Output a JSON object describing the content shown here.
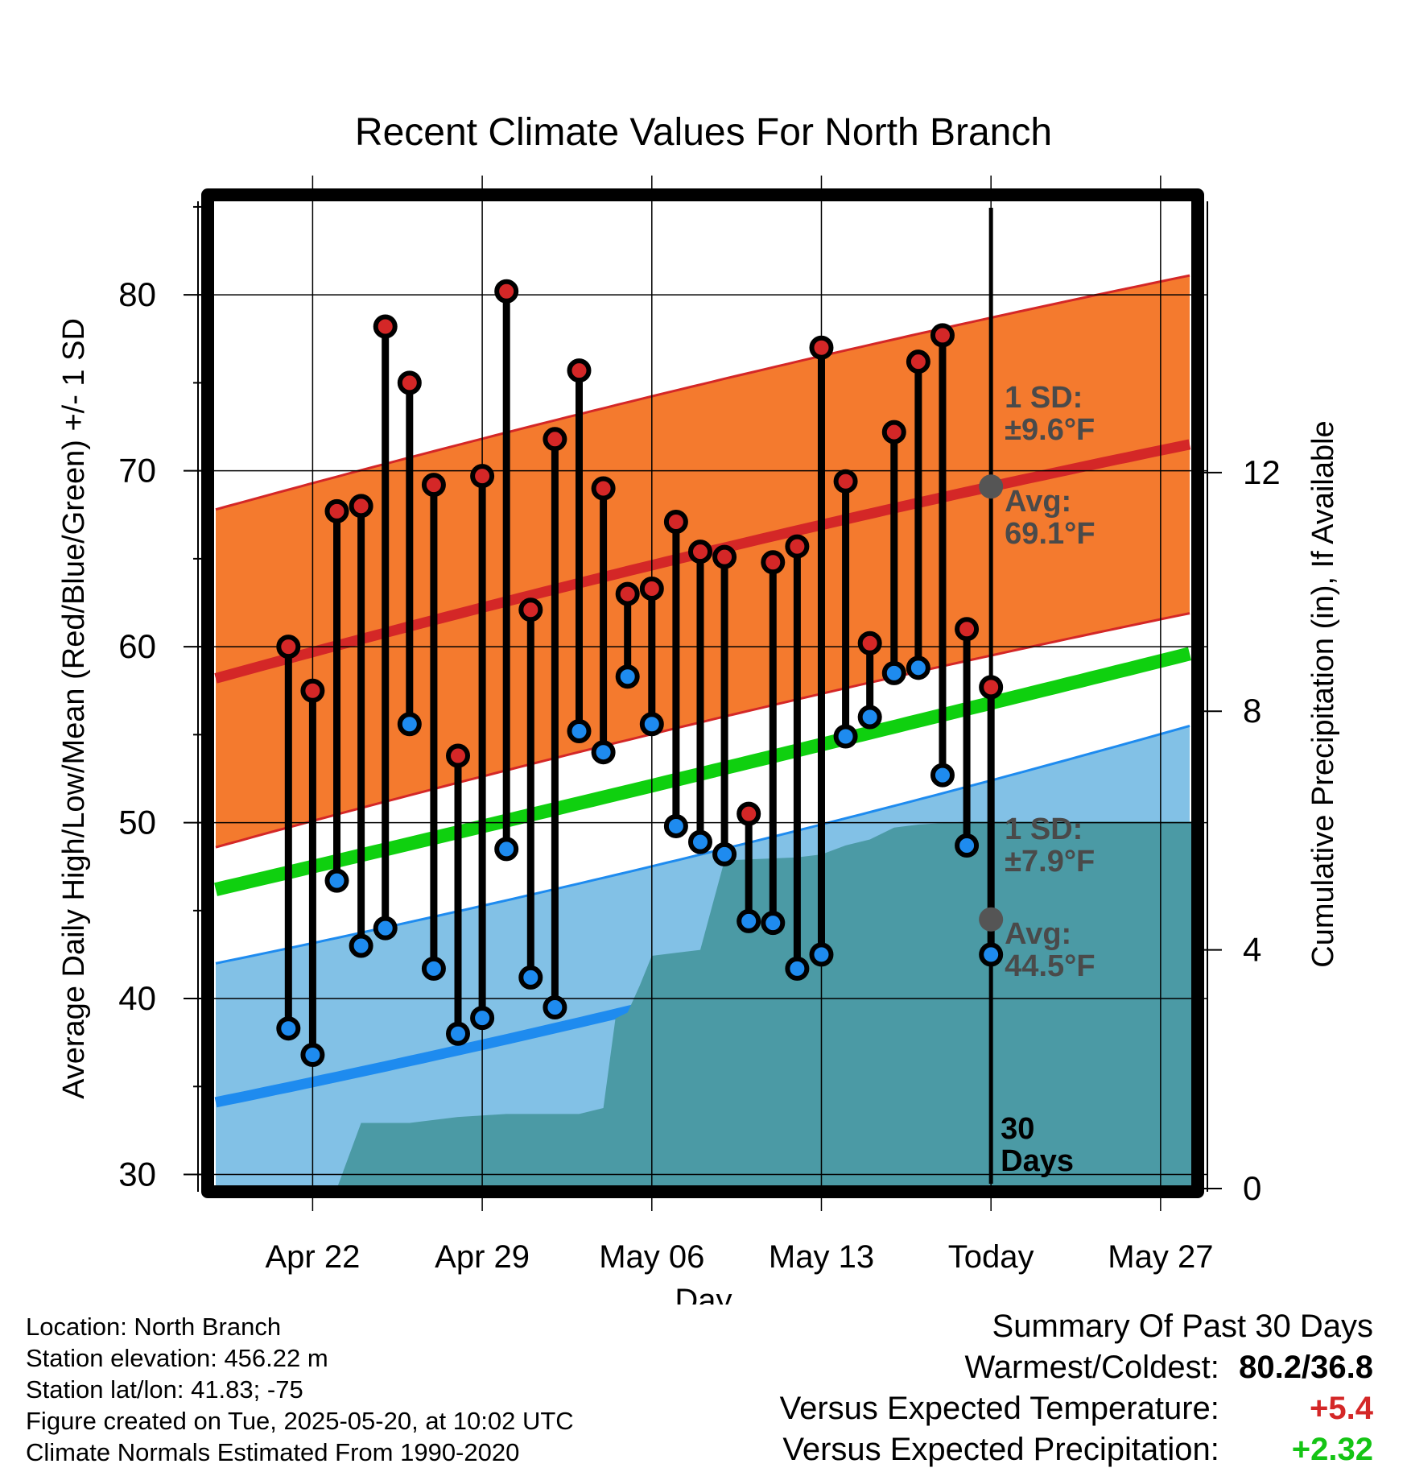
{
  "chart_data": {
    "type": "line",
    "title": "Recent Climate Values For North Branch",
    "xlabel": "Day",
    "ylabel": "Average Daily High/Low/Mean (Red/Blue/Green) +/- 1 SD",
    "y2label": "Cumulative Precipitation (in), If Available",
    "ylim": [
      29.2,
      85.5
    ],
    "y2lim": [
      0,
      16.6
    ],
    "yticks": [
      30,
      40,
      50,
      60,
      70,
      80
    ],
    "y2ticks": [
      0,
      4,
      8,
      12
    ],
    "x_day_range": [
      -2.2,
      38.4
    ],
    "xticks": [
      {
        "day": 2,
        "label": "Apr 22"
      },
      {
        "day": 9,
        "label": "Apr 29"
      },
      {
        "day": 16,
        "label": "May 06"
      },
      {
        "day": 23,
        "label": "May 13"
      },
      {
        "day": 30,
        "label": "Today"
      },
      {
        "day": 37,
        "label": "May 27"
      }
    ],
    "today_day": 30,
    "today_label_line1": "30",
    "today_label_line2": "Days",
    "days": [
      1,
      2,
      3,
      4,
      5,
      6,
      7,
      8,
      9,
      10,
      11,
      12,
      13,
      14,
      15,
      16,
      17,
      18,
      19,
      20,
      21,
      22,
      23,
      24,
      25,
      26,
      27,
      28,
      29
    ],
    "highs": [
      60.0,
      57.5,
      67.7,
      68.0,
      78.2,
      75.0,
      69.2,
      53.8,
      69.7,
      80.2,
      62.1,
      71.8,
      75.7,
      69.0,
      63.0,
      63.3,
      67.1,
      65.4,
      65.1,
      50.5,
      64.8,
      65.7,
      77.0,
      69.4,
      60.2,
      72.2,
      76.2,
      77.7,
      61.0
    ],
    "lows": [
      38.3,
      36.8,
      46.7,
      43.0,
      44.0,
      55.6,
      41.7,
      38.0,
      38.9,
      48.5,
      41.2,
      39.5,
      55.2,
      54.0,
      58.3,
      55.6,
      49.8,
      48.9,
      48.2,
      44.4,
      44.3,
      41.7,
      42.5,
      54.9,
      56.0,
      58.5,
      58.8,
      52.7,
      48.7
    ],
    "extra_high": {
      "day": 30,
      "value": 57.7
    },
    "extra_low": {
      "day": 30,
      "value": 42.5
    },
    "normals": {
      "high_avg": [
        [
          -2,
          58.2
        ],
        [
          30,
          69.1
        ],
        [
          38.2,
          71.5
        ]
      ],
      "high_sd": 9.6,
      "low_avg": [
        [
          -2,
          34.1
        ],
        [
          30,
          44.5
        ],
        [
          38.2,
          47.6
        ]
      ],
      "low_sd": 7.9,
      "mean_avg": [
        [
          -2,
          46.2
        ],
        [
          30,
          56.8
        ],
        [
          38.2,
          59.6
        ]
      ]
    },
    "precip_cumulative": [
      [
        -2.2,
        0
      ],
      [
        3.0,
        0
      ],
      [
        4.0,
        1.1
      ],
      [
        6.0,
        1.1
      ],
      [
        8.0,
        1.2
      ],
      [
        10.0,
        1.25
      ],
      [
        13.0,
        1.25
      ],
      [
        14.0,
        1.35
      ],
      [
        14.5,
        2.85
      ],
      [
        15.0,
        2.95
      ],
      [
        15.5,
        3.4
      ],
      [
        16.0,
        3.9
      ],
      [
        17.0,
        3.95
      ],
      [
        18.0,
        4.0
      ],
      [
        19.0,
        5.5
      ],
      [
        22.0,
        5.55
      ],
      [
        23.0,
        5.6
      ],
      [
        24.0,
        5.75
      ],
      [
        25.0,
        5.85
      ],
      [
        26.0,
        6.05
      ],
      [
        27.0,
        6.1
      ],
      [
        29.0,
        6.15
      ],
      [
        38.4,
        6.15
      ]
    ],
    "annotations": {
      "high_sd_line1": "1 SD:",
      "high_sd_line2": "±9.6°F",
      "high_avg_line1": "Avg:",
      "high_avg_line2": "69.1°F",
      "low_sd_line1": "1 SD:",
      "low_sd_line2": "±7.9°F",
      "low_avg_line1": "Avg:",
      "low_avg_line2": "44.5°F"
    },
    "colors": {
      "high_band": "#f47a2e",
      "high_line": "#d42727",
      "low_band": "#82c1e6",
      "low_line": "#1e8bef",
      "mean_line": "#0fd00f",
      "precip": "#4b9aa5",
      "high_dot": "#d42727",
      "low_dot": "#1e8bef",
      "annotation": "#4a4a4a"
    }
  },
  "footer": {
    "location": "Location: North Branch",
    "elevation": "Station elevation: 456.22 m",
    "latlon": "Station lat/lon: 41.83; -75",
    "created": "Figure created on Tue, 2025-05-20, at 10:02 UTC",
    "normals": "Climate Normals Estimated From 1990-2020"
  },
  "summary": {
    "title": "Summary Of Past 30 Days",
    "warmest_coldest_label": "Warmest/Coldest:",
    "warmest_coldest_value": "80.2/36.8",
    "temp_label": "Versus Expected Temperature:",
    "temp_value": "+5.4",
    "temp_color": "#d42727",
    "precip_label": "Versus Expected Precipitation:",
    "precip_value": "+2.32",
    "precip_color": "#14c414"
  }
}
